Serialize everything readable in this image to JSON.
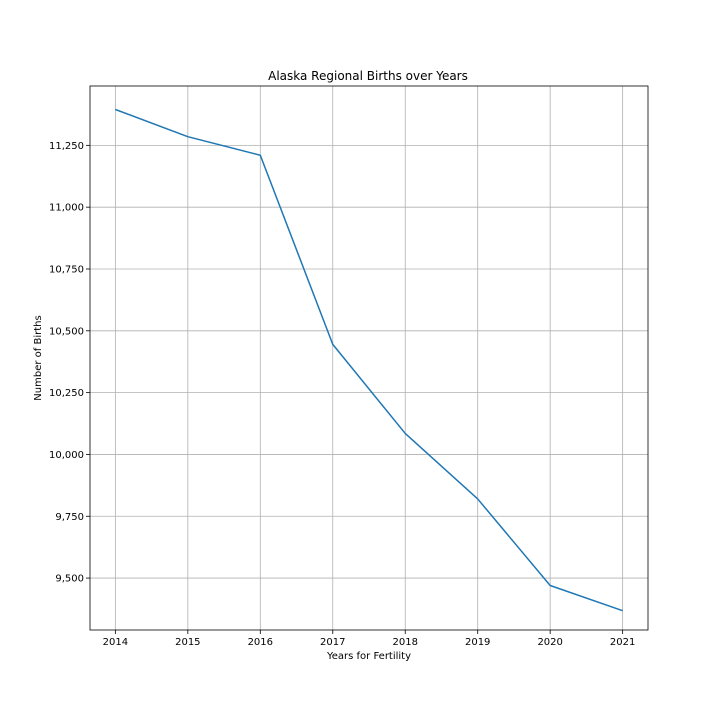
{
  "chart_data": {
    "type": "line",
    "title": "Alaska Regional Births over Years",
    "xlabel": "Years for Fertility",
    "ylabel": "Number of Births",
    "x": [
      2014,
      2015,
      2016,
      2017,
      2018,
      2019,
      2020,
      2021
    ],
    "series": [
      {
        "values": [
          11395,
          11285,
          11210,
          10445,
          10085,
          9820,
          9470,
          9368
        ],
        "color": "#1f77b4"
      }
    ],
    "xticks": [
      "2014",
      "2015",
      "2016",
      "2017",
      "2018",
      "2019",
      "2020",
      "2021"
    ],
    "yticks": [
      9500,
      9750,
      10000,
      10250,
      10500,
      10750,
      11000,
      11250
    ],
    "ytick_labels": [
      "9,500",
      "9,750",
      "10,000",
      "10,250",
      "10,500",
      "10,750",
      "11,000",
      "11,250"
    ],
    "ylim": [
      9290,
      11490
    ],
    "xlim": [
      2013.65,
      2021.35
    ],
    "grid": true
  }
}
